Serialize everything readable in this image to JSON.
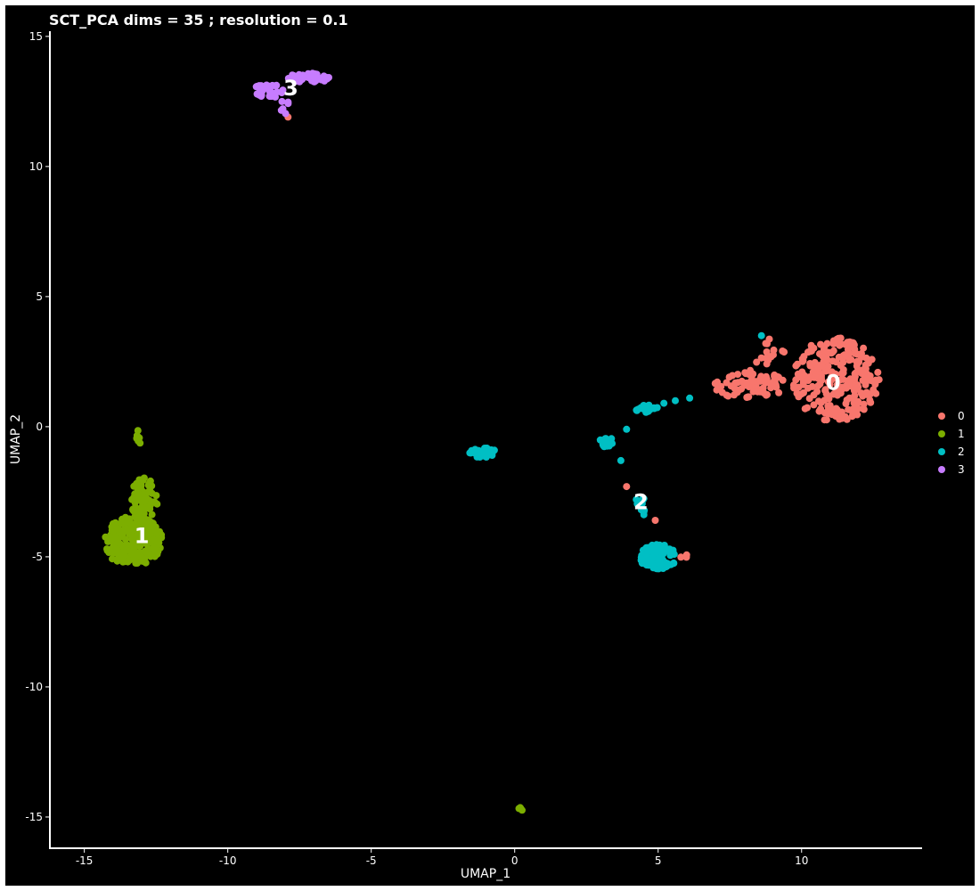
{
  "chart_data": {
    "type": "scatter",
    "title": "SCT_PCA dims =  35 ; resolution = 0.1",
    "xlabel": "UMAP_1",
    "ylabel": "UMAP_2",
    "xlim": [
      -16.2,
      14.2
    ],
    "ylim": [
      -16.2,
      15.2
    ],
    "xticks": [
      -15,
      -10,
      -5,
      0,
      5,
      10
    ],
    "yticks": [
      -15,
      -10,
      -5,
      0,
      5,
      10,
      15
    ],
    "grid": false,
    "legend_position": "right",
    "background": "#000000",
    "clusters": [
      {
        "name": "0",
        "color": "#F8766D",
        "label_pos": [
          11.1,
          1.7
        ],
        "blobs": [
          {
            "cx": 11.2,
            "cy": 1.8,
            "rx": 1.6,
            "ry": 1.7,
            "n": 260
          },
          {
            "cx": 8.2,
            "cy": 1.6,
            "rx": 1.3,
            "ry": 0.6,
            "n": 70
          },
          {
            "cx": 8.9,
            "cy": 2.8,
            "rx": 0.6,
            "ry": 0.6,
            "n": 14
          },
          {
            "cx": 5.9,
            "cy": -5.0,
            "rx": 0.15,
            "ry": 0.15,
            "n": 3
          }
        ],
        "points": [
          [
            -7.9,
            11.9
          ],
          [
            3.9,
            -2.3
          ],
          [
            4.9,
            -3.6
          ],
          [
            9.8,
            1.8
          ],
          [
            9.2,
            1.9
          ]
        ]
      },
      {
        "name": "1",
        "color": "#7CAE00",
        "label_pos": [
          -13.0,
          -4.2
        ],
        "blobs": [
          {
            "cx": -13.3,
            "cy": -4.4,
            "rx": 1.1,
            "ry": 1.0,
            "n": 230
          },
          {
            "cx": -12.9,
            "cy": -2.8,
            "rx": 0.5,
            "ry": 0.9,
            "n": 70
          },
          {
            "cx": -13.1,
            "cy": -0.4,
            "rx": 0.1,
            "ry": 0.3,
            "n": 8
          },
          {
            "cx": 0.2,
            "cy": -14.7,
            "rx": 0.1,
            "ry": 0.1,
            "n": 5
          }
        ],
        "points": []
      },
      {
        "name": "2",
        "color": "#00BFC4",
        "label_pos": [
          4.4,
          -2.9
        ],
        "blobs": [
          {
            "cx": 5.0,
            "cy": -5.0,
            "rx": 0.7,
            "ry": 0.5,
            "n": 110
          },
          {
            "cx": 4.4,
            "cy": -3.0,
            "rx": 0.2,
            "ry": 0.5,
            "n": 12
          },
          {
            "cx": -1.1,
            "cy": -1.0,
            "rx": 0.5,
            "ry": 0.2,
            "n": 45
          },
          {
            "cx": 3.2,
            "cy": -0.6,
            "rx": 0.3,
            "ry": 0.2,
            "n": 14
          },
          {
            "cx": 4.6,
            "cy": 0.7,
            "rx": 0.4,
            "ry": 0.2,
            "n": 20
          }
        ],
        "points": [
          [
            3.9,
            -0.1
          ],
          [
            3.7,
            -1.3
          ],
          [
            5.2,
            0.9
          ],
          [
            5.6,
            1.0
          ],
          [
            6.1,
            1.1
          ],
          [
            8.6,
            3.5
          ]
        ]
      },
      {
        "name": "3",
        "color": "#C77CFF",
        "label_pos": [
          -7.8,
          13.0
        ],
        "blobs": [
          {
            "cx": -7.2,
            "cy": 13.4,
            "rx": 0.8,
            "ry": 0.2,
            "n": 45
          },
          {
            "cx": -8.6,
            "cy": 12.9,
            "rx": 0.6,
            "ry": 0.3,
            "n": 30
          },
          {
            "cx": -8.0,
            "cy": 12.3,
            "rx": 0.2,
            "ry": 0.3,
            "n": 6
          }
        ],
        "points": []
      }
    ],
    "legend": {
      "entries": [
        {
          "label": "0",
          "color": "#F8766D"
        },
        {
          "label": "1",
          "color": "#7CAE00"
        },
        {
          "label": "2",
          "color": "#00BFC4"
        },
        {
          "label": "3",
          "color": "#C77CFF"
        }
      ]
    }
  }
}
